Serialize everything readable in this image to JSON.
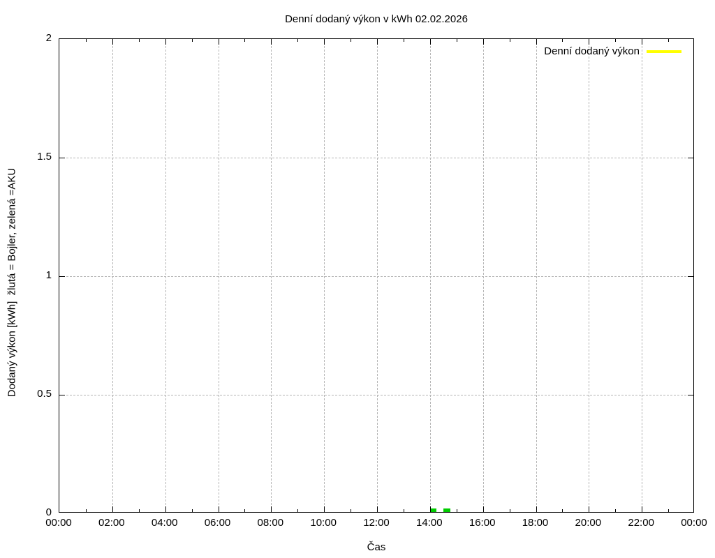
{
  "chart_data": {
    "type": "line",
    "title": "Denní dodaný výkon v kWh 02.02.2026",
    "xlabel": "Čas",
    "ylabel": "Dodaný výkon [kWh]  žlutá = Bojler, zelená =AKU",
    "xlim_hours": [
      0,
      24
    ],
    "ylim": [
      0,
      2
    ],
    "grid": true,
    "legend_position": "top-right-inside",
    "x_major_tick_hours": [
      0,
      2,
      4,
      6,
      8,
      10,
      12,
      14,
      16,
      18,
      20,
      22,
      24
    ],
    "x_tick_labels": [
      "00:00",
      "02:00",
      "04:00",
      "06:00",
      "08:00",
      "10:00",
      "12:00",
      "14:00",
      "16:00",
      "18:00",
      "20:00",
      "22:00",
      "00:00"
    ],
    "x_minor_tick_hours": [
      1,
      3,
      5,
      7,
      9,
      11,
      13,
      15,
      17,
      19,
      21,
      23
    ],
    "y_tick_values": [
      0,
      0.5,
      1,
      1.5,
      2
    ],
    "y_tick_labels": [
      "0",
      "0.5",
      "1",
      "1.5",
      "2"
    ],
    "series": [
      {
        "name": "Denní dodaný výkon",
        "color": "#ffff00",
        "style": "line",
        "points": []
      },
      {
        "name": "AKU",
        "color": "#00cc00",
        "style": "segments",
        "segments": [
          {
            "start_hour": 14.04,
            "end_hour": 14.23,
            "value_kwh": 0.015
          },
          {
            "start_hour": 14.5,
            "end_hour": 14.76,
            "value_kwh": 0.015
          }
        ]
      }
    ]
  },
  "legend": {
    "label": "Denní dodaný výkon",
    "line_color": "#ffff00"
  },
  "colors": {
    "background": "#ffffff",
    "border": "#000000",
    "grid": "#b4b4b4",
    "text": "#000000",
    "bojler": "#ffff00",
    "aku": "#00cc00"
  }
}
